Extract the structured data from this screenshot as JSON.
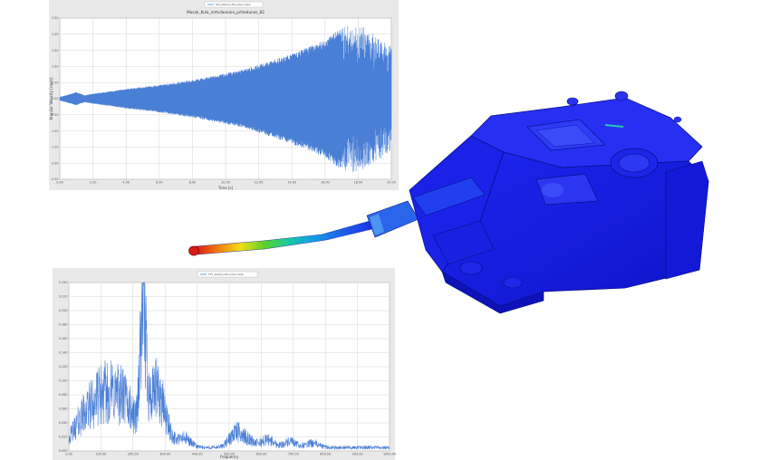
{
  "chart_data": [
    {
      "type": "line",
      "title": "Mosak_Kula_mrtvilanenie_prhledanes_82",
      "legend": [
        "Std_Radius-Mounted.data"
      ],
      "xlabel": "Time [s]",
      "ylabel": "Angular Velocity [rad/s]",
      "xlim": [
        0,
        20
      ],
      "ylim": [
        -2.5,
        2.5
      ],
      "x_ticks": [
        "0.00",
        "2.00",
        "4.00",
        "6.00",
        "8.00",
        "10.00",
        "12.00",
        "14.00",
        "16.00",
        "18.00",
        "20.00"
      ],
      "y_ticks": [
        "2.50",
        "2.00",
        "1.50",
        "1.00",
        "0.50",
        "0.00",
        "-0.50",
        "-1.00",
        "-1.50",
        "-2.00",
        "-2.50"
      ],
      "series": [
        {
          "color": "#4a7fd6",
          "envelope_t": [
            0,
            0.5,
            1.0,
            1.5,
            2.0,
            3,
            4,
            5,
            6,
            7,
            8,
            9,
            10,
            11,
            12,
            13,
            14,
            15,
            16,
            17,
            17.3,
            17.8,
            18.4,
            19,
            19.5,
            20
          ],
          "envelope_amp": [
            0.05,
            0.12,
            0.2,
            0.1,
            0.15,
            0.22,
            0.3,
            0.36,
            0.42,
            0.5,
            0.58,
            0.68,
            0.78,
            0.9,
            1.05,
            1.22,
            1.4,
            1.6,
            1.82,
            2.2,
            2.35,
            2.3,
            2.2,
            2.0,
            1.8,
            1.6
          ]
        }
      ]
    },
    {
      "type": "line",
      "title": "",
      "legend": [
        "FFT_Radius-Mounted.data"
      ],
      "xlabel": "Frequency",
      "ylabel": "",
      "xlim": [
        0,
        1000
      ],
      "ylim": [
        0,
        0.24
      ],
      "x_ticks": [
        "0.00",
        "100.00",
        "200.00",
        "300.00",
        "400.00",
        "500.00",
        "600.00",
        "700.00",
        "800.00",
        "900.00",
        "1000.00"
      ],
      "y_ticks": [
        "0.240",
        "0.220",
        "0.200",
        "0.180",
        "0.160",
        "0.140",
        "0.120",
        "0.100",
        "0.080",
        "0.060",
        "0.040",
        "0.020",
        "0.000"
      ],
      "series": [
        {
          "color": "#4a7fd6",
          "peaks_freq": [
            25,
            50,
            85,
            120,
            150,
            185,
            232,
            270,
            300,
            360,
            520,
            560,
            620,
            690,
            760
          ],
          "peaks_amp": [
            0.032,
            0.05,
            0.082,
            0.09,
            0.072,
            0.1,
            0.222,
            0.16,
            0.06,
            0.03,
            0.047,
            0.022,
            0.025,
            0.018,
            0.014
          ]
        }
      ]
    }
  ]
}
